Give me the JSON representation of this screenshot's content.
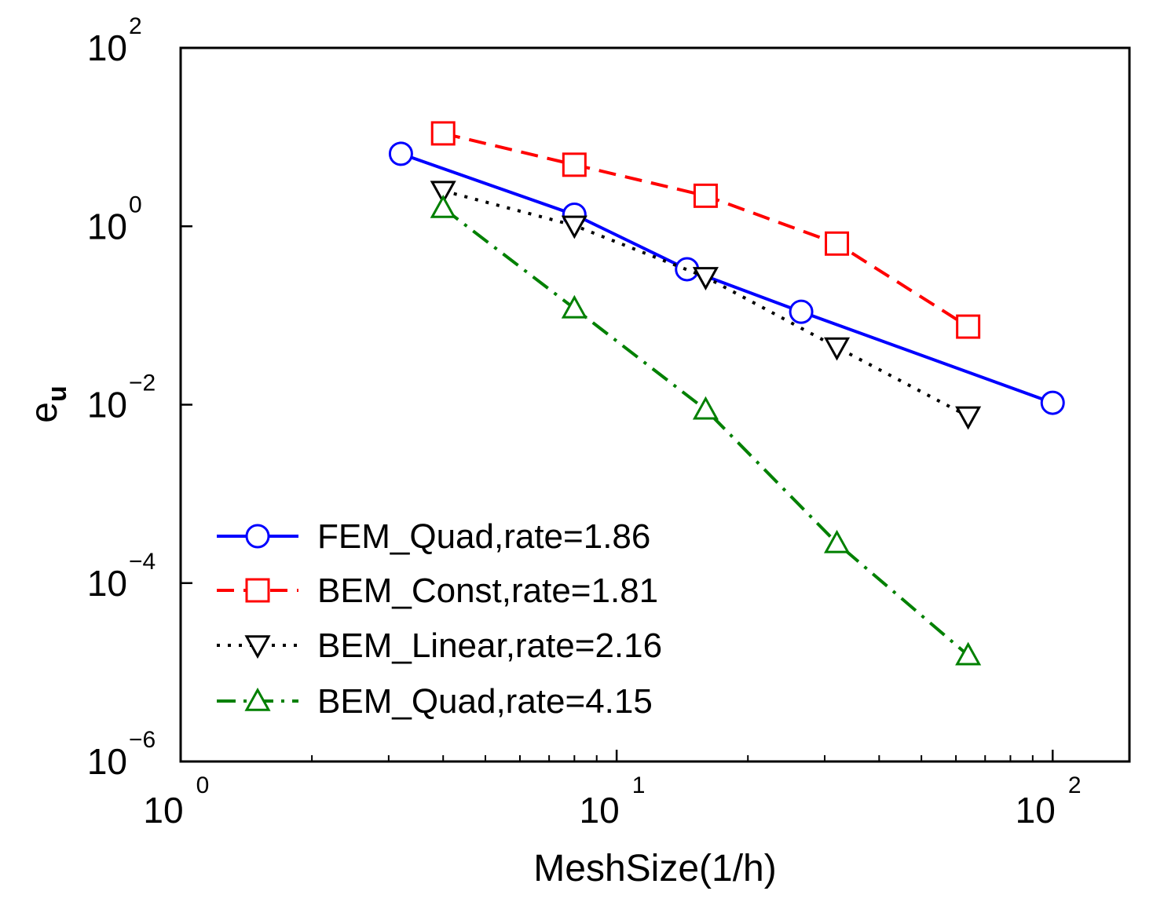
{
  "chart_data": {
    "type": "line",
    "title": "",
    "xlabel": "MeshSize(1/h)",
    "ylabel": {
      "base": "e",
      "subscript": "u"
    },
    "xscale": "log",
    "yscale": "log",
    "xlim": [
      1,
      150
    ],
    "ylim": [
      1e-06,
      100
    ],
    "grid": false,
    "legend_position": "lower-left",
    "x_ticks": [
      {
        "value": 1,
        "base": "10",
        "exp": "0"
      },
      {
        "value": 10,
        "base": "10",
        "exp": "1"
      },
      {
        "value": 100,
        "base": "10",
        "exp": "2"
      }
    ],
    "y_ticks": [
      {
        "value": 1e-06,
        "base": "10",
        "exp": "−6"
      },
      {
        "value": 0.0001,
        "base": "10",
        "exp": "−4"
      },
      {
        "value": 0.01,
        "base": "10",
        "exp": "−2"
      },
      {
        "value": 1,
        "base": "10",
        "exp": "0"
      },
      {
        "value": 100,
        "base": "10",
        "exp": "2"
      }
    ],
    "series": [
      {
        "name": "FEM_Quad,rate=1.86",
        "color": "#0000ff",
        "dash": "solid",
        "marker": "circle",
        "x": [
          3.2,
          8,
          14.5,
          26.5,
          100
        ],
        "y": [
          6.5,
          1.35,
          0.33,
          0.11,
          0.0105
        ]
      },
      {
        "name": "BEM_Const,rate=1.81",
        "color": "#ff0000",
        "dash": "dashed",
        "marker": "square",
        "x": [
          4,
          8,
          16,
          32,
          64
        ],
        "y": [
          11,
          4.9,
          2.2,
          0.64,
          0.075
        ]
      },
      {
        "name": "BEM_Linear,rate=2.16",
        "color": "#000000",
        "dash": "dotted",
        "marker": "triangle-down",
        "x": [
          4,
          8,
          16,
          32,
          64
        ],
        "y": [
          2.5,
          1.02,
          0.27,
          0.044,
          0.0074
        ]
      },
      {
        "name": "BEM_Quad,rate=4.15",
        "color": "#008000",
        "dash": "dashdot",
        "marker": "triangle-up",
        "x": [
          4,
          8,
          16,
          32,
          64
        ],
        "y": [
          1.6,
          0.12,
          0.0088,
          0.00028,
          1.55e-05
        ]
      }
    ]
  }
}
